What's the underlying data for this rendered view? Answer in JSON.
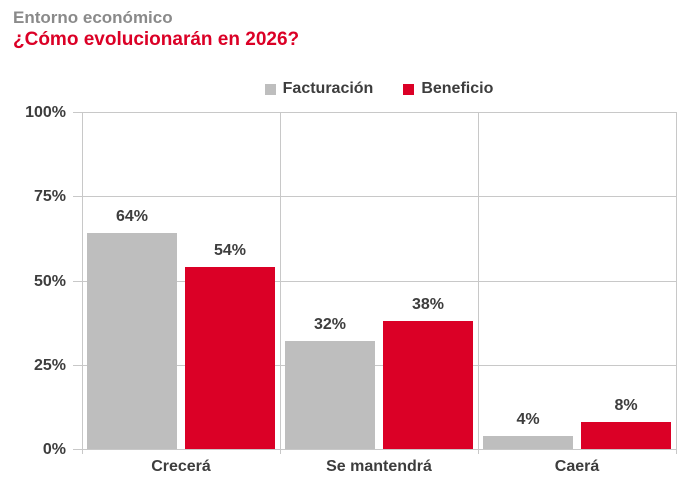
{
  "header": {
    "title": "Entorno económico",
    "subtitle": "¿Cómo evolucionarán en 2026?"
  },
  "chart_data": {
    "type": "bar",
    "title": "Entorno económico",
    "subtitle": "¿Cómo evolucionarán en 2026?",
    "categories": [
      "Crecerá",
      "Se mantendrá",
      "Caerá"
    ],
    "series": [
      {
        "name": "Facturación",
        "color": "#bebebe",
        "values": [
          64,
          32,
          4
        ]
      },
      {
        "name": "Beneficio",
        "color": "#db0026",
        "values": [
          54,
          38,
          8
        ]
      }
    ],
    "data_labels": [
      [
        "64%",
        "32%",
        "4%"
      ],
      [
        "54%",
        "38%",
        "8%"
      ]
    ],
    "ylim": [
      0,
      100
    ],
    "yticks": [
      0,
      25,
      50,
      75,
      100
    ],
    "ytick_labels": [
      "0%",
      "25%",
      "50%",
      "75%",
      "100%"
    ],
    "grid": true,
    "legend_position": "top-center"
  },
  "colors": {
    "title_gray": "#8a8a8a",
    "subtitle_red": "#db0026",
    "bar_gray": "#bebebe",
    "bar_red": "#db0026",
    "axis_text": "#3d3d3d",
    "gridline": "#c8c8c8",
    "background": "#ffffff"
  }
}
